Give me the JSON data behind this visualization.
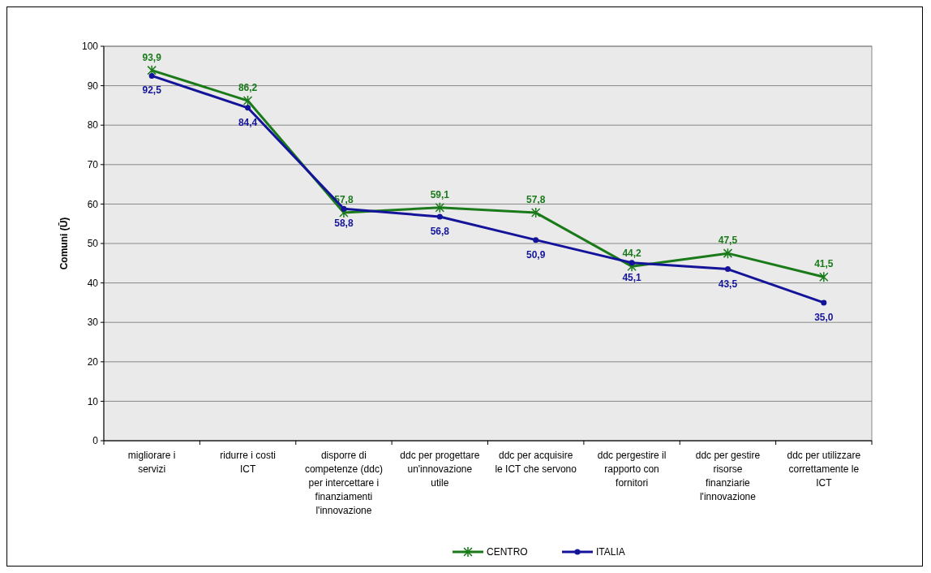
{
  "chart_data": {
    "type": "line",
    "ylabel": "Comuni (Ū)",
    "categories": [
      "migliorare i servizi",
      "ridurre i costi ICT",
      "disporre di competenze (ddc) per intercettare i finanziamenti l'innovazione",
      "ddc per progettare un'innovazione utile",
      "ddc per acquisire le ICT che servono",
      "ddc pergestire il rapporto con fornitori",
      "ddc per gestire risorse finanziarie l'innovazione",
      "ddc per utilizzare correttamente le ICT"
    ],
    "series": [
      {
        "name": "CENTRO",
        "color": "#1a7a1a",
        "marker": "cross",
        "values": [
          93.9,
          86.2,
          57.8,
          59.1,
          57.8,
          44.2,
          47.5,
          41.5
        ],
        "value_labels": [
          "93,9",
          "86,2",
          "57,8",
          "59,1",
          "57,8",
          "44,2",
          "47,5",
          "41,5"
        ]
      },
      {
        "name": "ITALIA",
        "color": "#14149a",
        "marker": "circle",
        "values": [
          92.5,
          84.4,
          58.8,
          56.8,
          50.9,
          45.1,
          43.5,
          35.0
        ],
        "value_labels": [
          "92,5",
          "84,4",
          "58,8",
          "56,8",
          "50,9",
          "45,1",
          "43,5",
          "35,0"
        ]
      }
    ],
    "ylim": [
      0,
      100
    ],
    "yticks": [
      0,
      10,
      20,
      30,
      40,
      50,
      60,
      70,
      80,
      90,
      100
    ],
    "grid": "y",
    "legend": "bottom"
  }
}
